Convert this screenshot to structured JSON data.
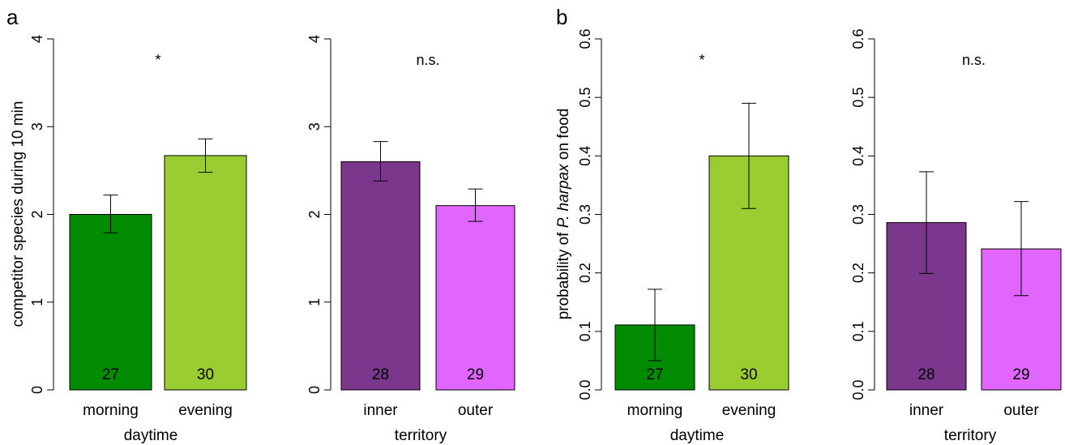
{
  "panel_letters": [
    "a",
    "b"
  ],
  "ylabels": {
    "a": "competitor species during 10 min",
    "b_prefix": "probability of ",
    "b_italic": "P. harpax",
    "b_suffix": " on food"
  },
  "colors": {
    "morning": "#008B00",
    "evening": "#9ACD32",
    "inner": "#7A378B",
    "outer": "#E066FF"
  },
  "chart_data": [
    {
      "type": "bar",
      "panel": "a",
      "xlabel": "daytime",
      "ylabel": "competitor species during 10 min",
      "ylim": [
        0,
        4
      ],
      "yticks": [
        "0",
        "1",
        "2",
        "3",
        "4"
      ],
      "categories": [
        "morning",
        "evening"
      ],
      "values": [
        2.0,
        2.67
      ],
      "error_low": [
        1.79,
        2.48
      ],
      "error_high": [
        2.22,
        2.86
      ],
      "n": [
        "27",
        "30"
      ],
      "significance": "*",
      "colors": [
        "#008B00",
        "#9ACD32"
      ]
    },
    {
      "type": "bar",
      "panel": "a",
      "xlabel": "territory",
      "ylabel": "",
      "ylim": [
        0,
        4
      ],
      "yticks": [
        "0",
        "1",
        "2",
        "3",
        "4"
      ],
      "categories": [
        "inner",
        "outer"
      ],
      "values": [
        2.6,
        2.1
      ],
      "error_low": [
        2.38,
        1.92
      ],
      "error_high": [
        2.83,
        2.29
      ],
      "n": [
        "28",
        "29"
      ],
      "significance": "n.s.",
      "colors": [
        "#7A378B",
        "#E066FF"
      ]
    },
    {
      "type": "bar",
      "panel": "b",
      "xlabel": "daytime",
      "ylabel": "probability of P. harpax on food",
      "ylim": [
        0,
        0.6
      ],
      "yticks": [
        "0.0",
        "0.1",
        "0.2",
        "0.3",
        "0.4",
        "0.5",
        "0.6"
      ],
      "categories": [
        "morning",
        "evening"
      ],
      "values": [
        0.111,
        0.4
      ],
      "error_low": [
        0.05,
        0.31
      ],
      "error_high": [
        0.172,
        0.49
      ],
      "n": [
        "27",
        "30"
      ],
      "significance": "*",
      "colors": [
        "#008B00",
        "#9ACD32"
      ]
    },
    {
      "type": "bar",
      "panel": "b",
      "xlabel": "territory",
      "ylabel": "",
      "ylim": [
        0,
        0.6
      ],
      "yticks": [
        "0.0",
        "0.1",
        "0.2",
        "0.3",
        "0.4",
        "0.5",
        "0.6"
      ],
      "categories": [
        "inner",
        "outer"
      ],
      "values": [
        0.286,
        0.241
      ],
      "error_low": [
        0.199,
        0.161
      ],
      "error_high": [
        0.373,
        0.322
      ],
      "n": [
        "28",
        "29"
      ],
      "significance": "n.s.",
      "colors": [
        "#7A378B",
        "#E066FF"
      ]
    }
  ]
}
